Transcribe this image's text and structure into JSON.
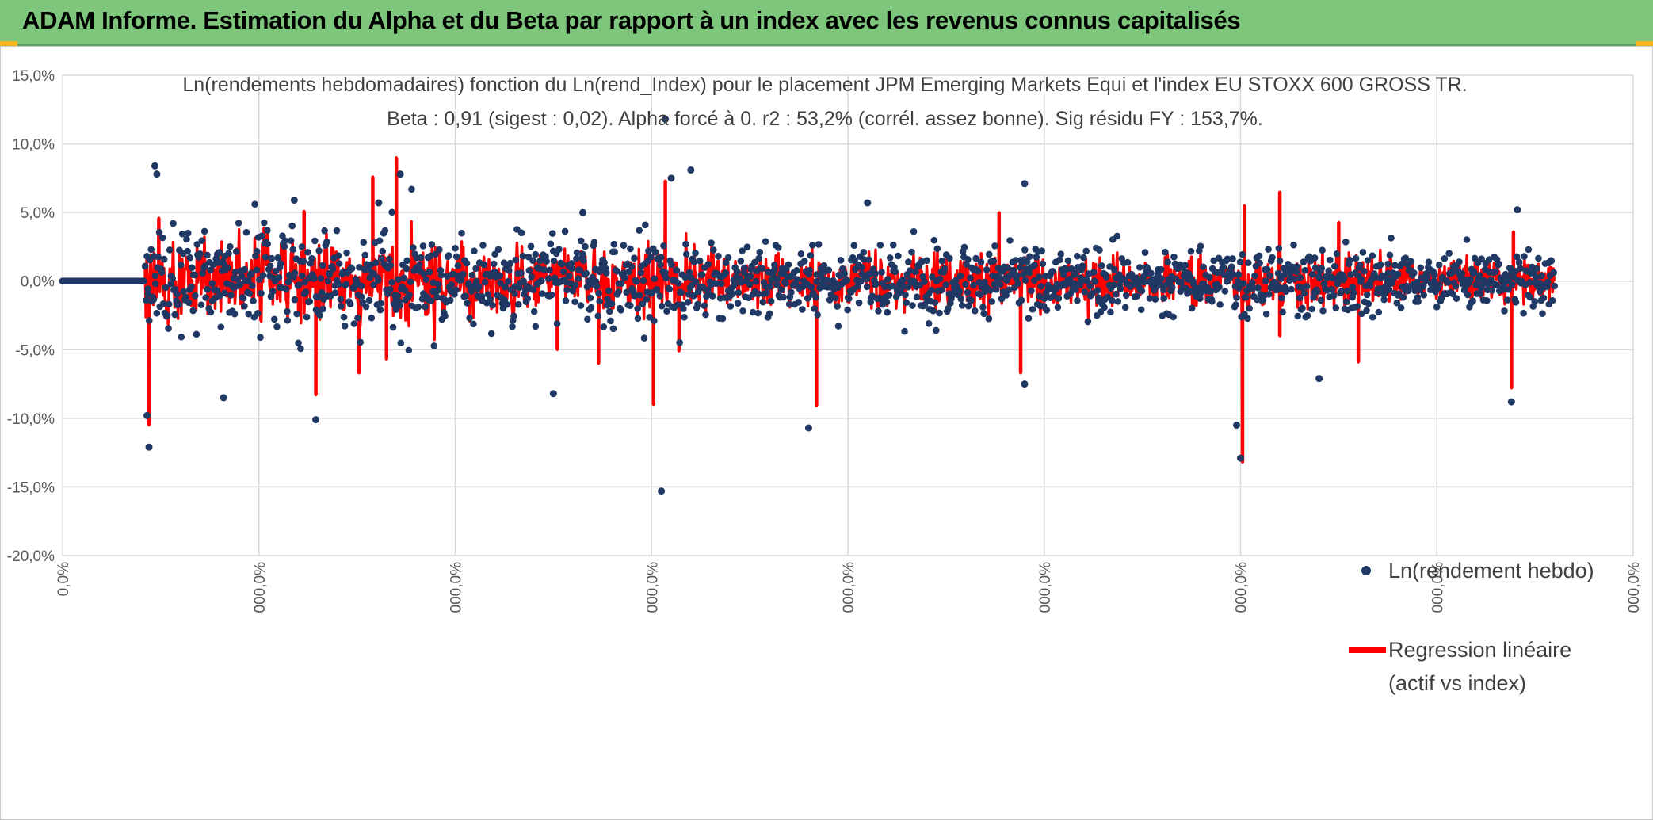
{
  "header": {
    "title": "ADAM Informe. Estimation du Alpha et du Beta par rapport à un index avec les revenus connus capitalisés"
  },
  "colors": {
    "banner": "#7dc67b",
    "scatter": "#1f3864",
    "regression": "#ff0000",
    "grid": "#d9d9d9"
  },
  "chart_data": {
    "type": "scatter",
    "title": "Ln(rendements hebdomadaires) fonction du Ln(rend_Index) pour le placement JPM Emerging Markets Equi et l'index EU STOXX 600 GROSS TR.",
    "subtitle": "Beta : 0,91 (sigest : 0,02). Alpha forcé à 0. r2 : 53,2% (corrél. assez bonne). Sig résidu FY : 153,7%.",
    "xlabel": "",
    "ylabel": "",
    "ylim": [
      -20,
      15
    ],
    "xlim": [
      0,
      8
    ],
    "y_ticks": [
      "15,0%",
      "10,0%",
      "5,0%",
      "0,0%",
      "-5,0%",
      "-10,0%",
      "-15,0%",
      "-20,0%"
    ],
    "y_tick_values": [
      15,
      10,
      5,
      0,
      -5,
      -10,
      -15,
      -20
    ],
    "x_ticks": [
      "0,0%",
      "000,0%",
      "000,0%",
      "000,0%",
      "000,0%",
      "000,0%",
      "000,0%",
      "000,0%",
      "000,0%"
    ],
    "x_tick_values": [
      0,
      1,
      2,
      3,
      4,
      5,
      6,
      7,
      8
    ],
    "grid": true,
    "legend_position": "right",
    "series": [
      {
        "name": "Ln(rendement hebdo)",
        "kind": "scatter",
        "flat_start": [
          0,
          0.42
        ],
        "active_range": [
          0.42,
          7.6
        ],
        "highlight_points": [
          {
            "x": 0.47,
            "y": 8.4
          },
          {
            "x": 0.48,
            "y": 7.8
          },
          {
            "x": 0.44,
            "y": -12.1
          },
          {
            "x": 0.43,
            "y": -9.8
          },
          {
            "x": 3.07,
            "y": 11.8
          },
          {
            "x": 3.05,
            "y": -15.3
          },
          {
            "x": 1.72,
            "y": 7.8
          },
          {
            "x": 1.61,
            "y": 5.7
          },
          {
            "x": 3.1,
            "y": 7.5
          },
          {
            "x": 3.2,
            "y": 8.1
          },
          {
            "x": 1.29,
            "y": -10.1
          },
          {
            "x": 4.9,
            "y": 7.1
          },
          {
            "x": 4.1,
            "y": 5.7
          },
          {
            "x": 3.8,
            "y": -10.7
          },
          {
            "x": 4.9,
            "y": -7.5
          },
          {
            "x": 5.98,
            "y": -10.5
          },
          {
            "x": 6.0,
            "y": -12.9
          },
          {
            "x": 7.41,
            "y": 5.2
          },
          {
            "x": 7.38,
            "y": -8.8
          },
          {
            "x": 0.82,
            "y": -8.5
          },
          {
            "x": 2.5,
            "y": -8.2
          },
          {
            "x": 2.65,
            "y": 5.0
          },
          {
            "x": 1.18,
            "y": 5.9
          },
          {
            "x": 6.4,
            "y": -7.1
          }
        ]
      },
      {
        "name": "Regression linéaire\n(actif vs index)",
        "legend_lines": [
          "Regression linéaire",
          "(actif vs index)"
        ],
        "kind": "line",
        "beta": 0.91,
        "alpha": 0,
        "spikes": [
          {
            "x": 0.44,
            "y": -10.5
          },
          {
            "x": 0.49,
            "y": 4.6
          },
          {
            "x": 1.23,
            "y": 5.1
          },
          {
            "x": 1.29,
            "y": -8.3
          },
          {
            "x": 1.51,
            "y": -6.7
          },
          {
            "x": 1.58,
            "y": 7.6
          },
          {
            "x": 1.7,
            "y": 9.0
          },
          {
            "x": 1.65,
            "y": -5.7
          },
          {
            "x": 2.52,
            "y": -5.0
          },
          {
            "x": 2.73,
            "y": -6.0
          },
          {
            "x": 3.01,
            "y": -9.0
          },
          {
            "x": 3.07,
            "y": 7.3
          },
          {
            "x": 3.14,
            "y": -5.1
          },
          {
            "x": 3.84,
            "y": -9.1
          },
          {
            "x": 4.77,
            "y": 5.0
          },
          {
            "x": 4.88,
            "y": -6.7
          },
          {
            "x": 6.01,
            "y": -13.2
          },
          {
            "x": 6.02,
            "y": 5.5
          },
          {
            "x": 6.2,
            "y": 6.5
          },
          {
            "x": 6.2,
            "y": -4.0
          },
          {
            "x": 6.5,
            "y": 4.3
          },
          {
            "x": 6.6,
            "y": -5.9
          },
          {
            "x": 7.38,
            "y": -7.8
          },
          {
            "x": 7.39,
            "y": 3.6
          }
        ]
      }
    ]
  }
}
